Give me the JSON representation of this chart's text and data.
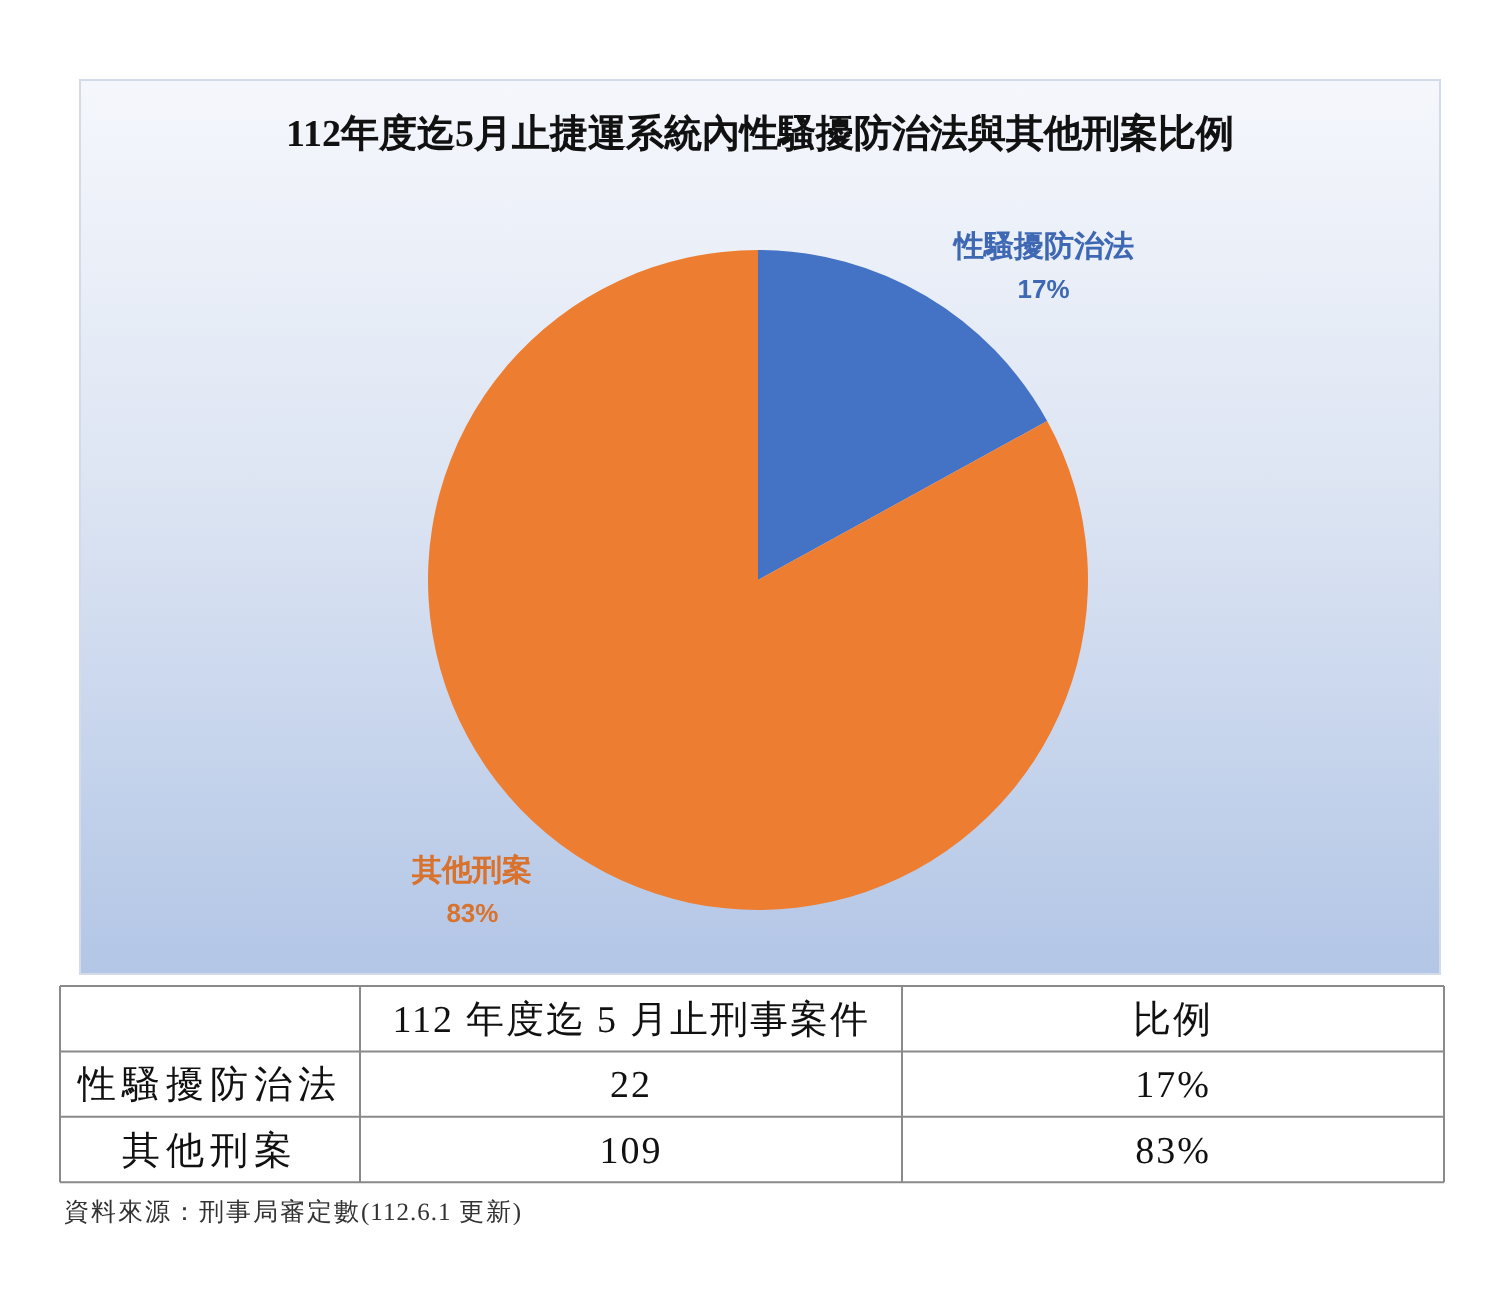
{
  "chart_data": [
    {
      "type": "pie",
      "title": "112年度迄5月止捷運系統內性騷擾防治法與其他刑案比例",
      "categories": [
        "性騷擾防治法",
        "其他刑案"
      ],
      "values": [
        17,
        83
      ],
      "colors": [
        "#4472c4",
        "#ed7d31"
      ],
      "value_labels": [
        "17%",
        "83%"
      ]
    },
    {
      "type": "other",
      "categories": [
        "性騷擾防治法",
        "其他刑案"
      ],
      "series": [
        {
          "name": "112 年度迄 5 月止刑事案件",
          "values": [
            22,
            109
          ]
        }
      ],
      "data_labels": true,
      "annotations": [
        "比例",
        "資料來源：刑事局審定數(112.6.1 更新)"
      ]
    }
  ]
}
